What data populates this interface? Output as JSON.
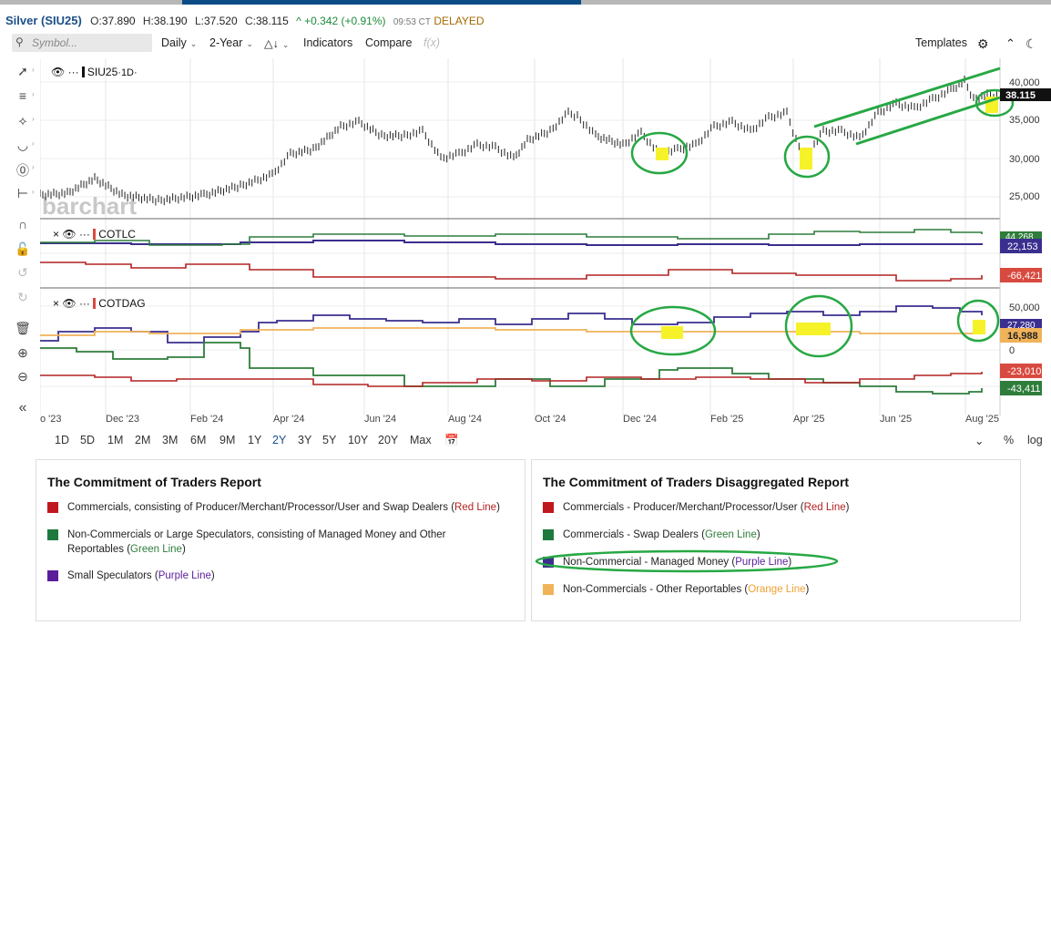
{
  "quote": {
    "symbol": "Silver (SIU25)",
    "o_label": "O:",
    "o": "37.890",
    "h_label": "H:",
    "h": "38.190",
    "l_label": "L:",
    "l": "37.520",
    "c_label": "C:",
    "c": "38.115",
    "change": "^ +0.342 (+0.91%)",
    "time": "09:53 CT",
    "status": "DELAYED"
  },
  "toolbar": {
    "search_placeholder": "Symbol...",
    "interval": "Daily",
    "range": "2-Year",
    "indicators": "Indicators",
    "compare": "Compare",
    "fx": "f(x)",
    "templates": "Templates"
  },
  "panels": {
    "price": {
      "label": "SIU25",
      "sub": "·1D·",
      "watermark": "barchart"
    },
    "cotlc": {
      "label": "COTLC"
    },
    "cotdag": {
      "label": "COTDAG"
    }
  },
  "price_axis": [
    "40,000",
    "35,000",
    "30,000",
    "25,000"
  ],
  "price_last": "38.115",
  "cotlc_badges": {
    "green": "44,268",
    "purple": "22,153",
    "red": "-66,421"
  },
  "cotdag_axis": [
    "50,000",
    "0"
  ],
  "cotdag_badges": {
    "purple": "27,280",
    "orange": "16,988",
    "red": "-23,010",
    "green": "-43,411"
  },
  "x_labels": [
    "o '23",
    "Dec '23",
    "Feb '24",
    "Apr '24",
    "Jun '24",
    "Aug '24",
    "Oct '24",
    "Dec '24",
    "Feb '25",
    "Apr '25",
    "Jun '25",
    "Aug '25"
  ],
  "ranges": [
    "1D",
    "5D",
    "1M",
    "2M",
    "3M",
    "6M",
    "9M",
    "1Y",
    "2Y",
    "3Y",
    "5Y",
    "10Y",
    "20Y",
    "Max"
  ],
  "range_right": {
    "percent": "%",
    "log": "log"
  },
  "colors": {
    "red": "#b22222",
    "green": "#2e7d3b",
    "purple": "#3a2f8f",
    "orange": "#f0b35a",
    "annot": "#27a844",
    "highlight": "#f6f22a"
  },
  "legend_left": {
    "title": "The Commitment of Traders Report",
    "items": [
      {
        "color": "#c0171e",
        "text": "Commercials, consisting of Producer/Merchant/Processor/User and Swap Dealers (",
        "hl": "Red Line",
        "hl_color": "#b22222",
        "end": ")"
      },
      {
        "color": "#1e7a3c",
        "text": "Non-Commercials or Large Speculators, consisting of Managed Money and Other",
        "text2": "Reportables (",
        "hl": "Green Line",
        "hl_color": "#2e7d3b",
        "end": ")"
      },
      {
        "color": "#5a1e9c",
        "text": "Small Speculators (",
        "hl": "Purple Line",
        "hl_color": "#5a1e9c",
        "end": ")"
      }
    ]
  },
  "legend_right": {
    "title": "The Commitment of Traders Disaggregated Report",
    "items": [
      {
        "color": "#c0171e",
        "text": "Commercials - Producer/Merchant/Processor/User (",
        "hl": "Red Line",
        "hl_color": "#b22222",
        "end": ")"
      },
      {
        "color": "#1e7a3c",
        "text": "Commercials - Swap Dealers (",
        "hl": "Green Line",
        "hl_color": "#2e7d3b",
        "end": ")"
      },
      {
        "color": "#3a2f8f",
        "text": "Non-Commercial - Managed Money (",
        "hl": "Purple Line",
        "hl_color": "#5a1e9c",
        "end": ")"
      },
      {
        "color": "#f0b35a",
        "text": "Non-Commercials - Other Reportables (",
        "hl": "Orange Line",
        "hl_color": "#f0a030",
        "end": ")"
      }
    ]
  }
}
